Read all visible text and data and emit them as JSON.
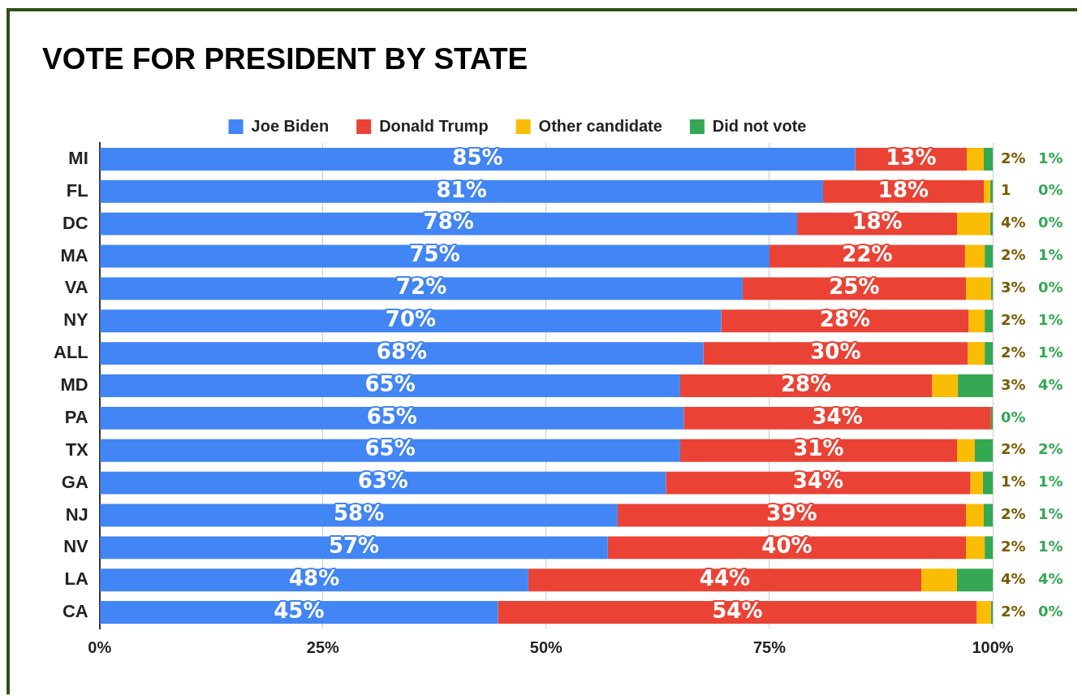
{
  "chart_data": {
    "type": "bar",
    "title": "VOTE FOR PRESIDENT BY STATE",
    "orientation": "horizontal",
    "stacked": true,
    "legend": "top",
    "grid": "x",
    "categories": [
      "MI",
      "FL",
      "DC",
      "MA",
      "VA",
      "NY",
      "ALL",
      "MD",
      "PA",
      "TX",
      "GA",
      "NJ",
      "NV",
      "LA",
      "CA"
    ],
    "xlim": [
      0,
      100
    ],
    "xticks": [
      {
        "value": 0,
        "label": "0%"
      },
      {
        "value": 25,
        "label": "25%"
      },
      {
        "value": 50,
        "label": "50%"
      },
      {
        "value": 75,
        "label": "75%"
      },
      {
        "value": 100,
        "label": "100%"
      }
    ],
    "series": [
      {
        "name": "Joe Biden",
        "color": "#4285f4",
        "values": [
          84.6,
          81,
          78.1,
          75,
          72,
          69.6,
          67.6,
          65,
          65.4,
          65,
          63.4,
          58,
          56.9,
          48,
          44.6
        ],
        "value_labels": [
          "85%",
          "81%",
          "78%",
          "75%",
          "72%",
          "70%",
          "68%",
          "65%",
          "65%",
          "65%",
          "63%",
          "58%",
          "57%",
          "48%",
          "45%"
        ]
      },
      {
        "name": "Donald Trump",
        "color": "#ea4335",
        "values": [
          12.5,
          18,
          17.9,
          21.9,
          25,
          27.7,
          29.6,
          28.2,
          34.4,
          31,
          34.1,
          39,
          40.1,
          44,
          53.6
        ],
        "value_labels": [
          "13%",
          "18%",
          "18%",
          "22%",
          "25%",
          "28%",
          "30%",
          "28%",
          "34%",
          "31%",
          "34%",
          "39%",
          "40%",
          "44%",
          "54%"
        ]
      },
      {
        "name": "Other candidate",
        "color": "#fbbc04",
        "values": [
          1.9,
          0.7,
          3.7,
          2.2,
          2.8,
          1.8,
          1.9,
          2.9,
          0,
          2,
          1.4,
          2,
          2.1,
          4,
          1.6
        ],
        "value_labels": [
          "2%",
          "1",
          "4%",
          "2%",
          "3%",
          "2%",
          "2%",
          "3%",
          null,
          "2%",
          "1%",
          "2%",
          "2%",
          "4%",
          "2%"
        ]
      },
      {
        "name": "Did not vote",
        "color": "#34a853",
        "values": [
          1,
          0.3,
          0.3,
          0.9,
          0.2,
          0.9,
          0.9,
          3.9,
          0.2,
          2,
          1.1,
          1,
          0.9,
          4,
          0.2
        ],
        "value_labels": [
          "1%",
          "0%",
          "0%",
          "1%",
          "0%",
          "1%",
          "1%",
          "4%",
          "0%",
          "2%",
          "1%",
          "1%",
          "1%",
          "4%",
          "0%"
        ]
      }
    ]
  }
}
